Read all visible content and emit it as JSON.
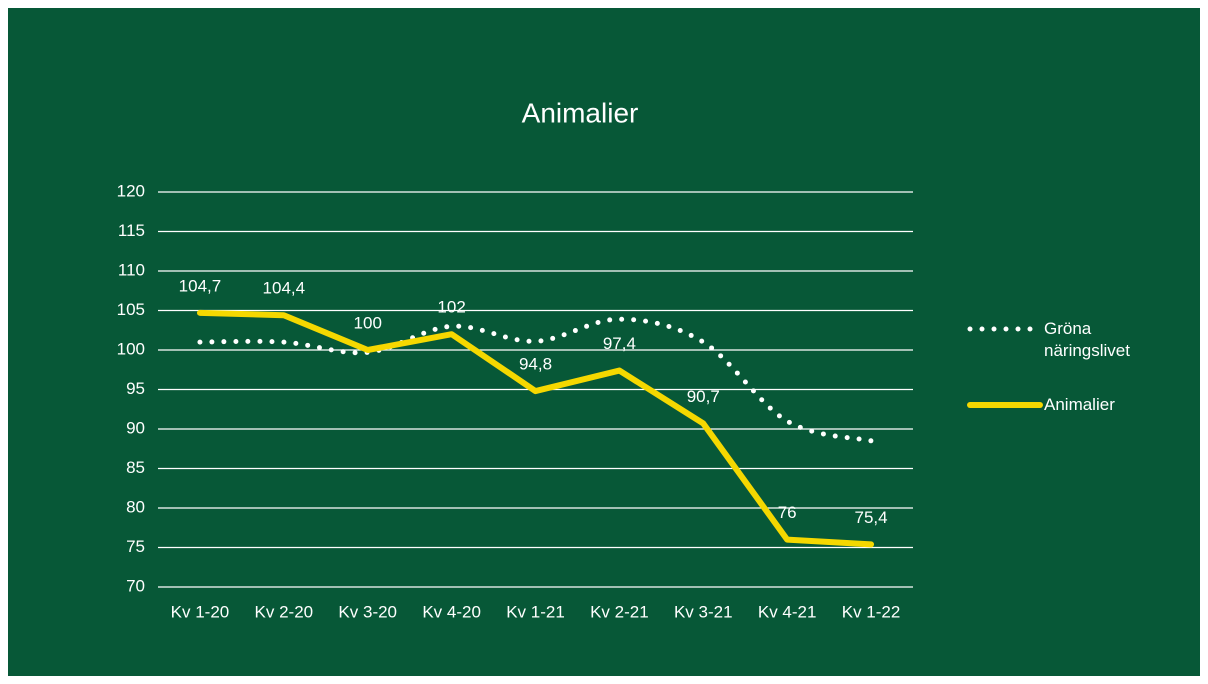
{
  "chart_data": {
    "type": "line",
    "title": "Animalier",
    "categories": [
      "Kv 1-20",
      "Kv 2-20",
      "Kv 3-20",
      "Kv 4-20",
      "Kv 1-21",
      "Kv 2-21",
      "Kv 3-21",
      "Kv 4-21",
      "Kv 1-22"
    ],
    "series": [
      {
        "name": "Gröna näringslivet",
        "color": "#ffffff",
        "style": "dotted",
        "smooth": true,
        "values": [
          101,
          101,
          99.7,
          103,
          101.1,
          103.9,
          101,
          91,
          88.5
        ]
      },
      {
        "name": "Animalier",
        "color": "#f5d800",
        "style": "solid",
        "values": [
          104.7,
          104.4,
          100,
          102,
          94.8,
          97.4,
          90.7,
          76,
          75.4
        ],
        "value_labels": [
          "104,7",
          "104,4",
          "100",
          "102",
          "94,8",
          "97,4",
          "90,7",
          "76",
          "75,4"
        ]
      }
    ],
    "ylim": [
      70,
      120
    ],
    "yticks": [
      70,
      75,
      80,
      85,
      90,
      95,
      100,
      105,
      110,
      115,
      120
    ],
    "grid": true,
    "legend": "right"
  }
}
